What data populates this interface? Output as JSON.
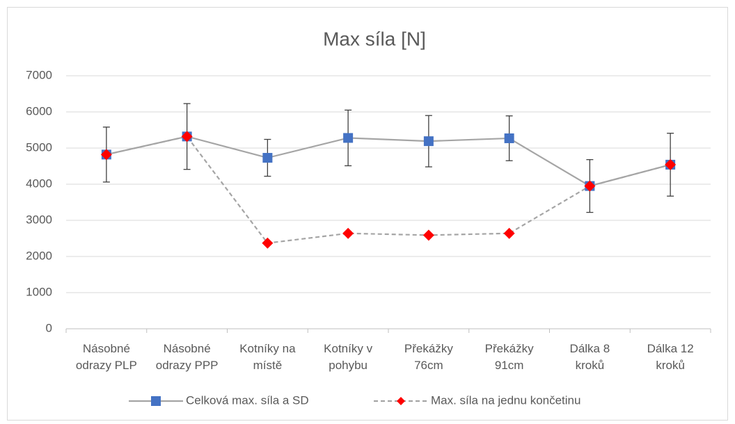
{
  "chart_data": {
    "type": "line",
    "title": "Max síla [N]",
    "categories": [
      [
        "Násobné",
        "odrazy PLP"
      ],
      [
        "Násobné",
        "odrazy PPP"
      ],
      [
        "Kotníky na",
        "místě"
      ],
      [
        "Kotníky v",
        "pohybu"
      ],
      [
        "Překážky",
        "76cm"
      ],
      [
        "Překážky",
        "91cm"
      ],
      [
        "Dálka 8",
        "kroků"
      ],
      [
        "Dálka 12",
        "kroků"
      ]
    ],
    "series": [
      {
        "name": "Celková max. síla a SD",
        "color": "#4472c4",
        "line_color": "#a5a5a5",
        "marker": "square",
        "values": [
          4820,
          5320,
          4730,
          5280,
          5190,
          5270,
          3950,
          4540
        ],
        "errors": [
          760,
          910,
          510,
          770,
          710,
          620,
          730,
          870
        ]
      },
      {
        "name": "Max. síla na jednu končetinu",
        "color": "#ff0000",
        "line_color": "#a5a5a5",
        "marker": "diamond",
        "dashed": true,
        "values": [
          4820,
          5320,
          2370,
          2640,
          2590,
          2640,
          3950,
          4540
        ]
      }
    ],
    "ylim": [
      0,
      7000
    ],
    "yticks": [
      0,
      1000,
      2000,
      3000,
      4000,
      5000,
      6000,
      7000
    ],
    "grid": true,
    "legend": "bottom"
  }
}
